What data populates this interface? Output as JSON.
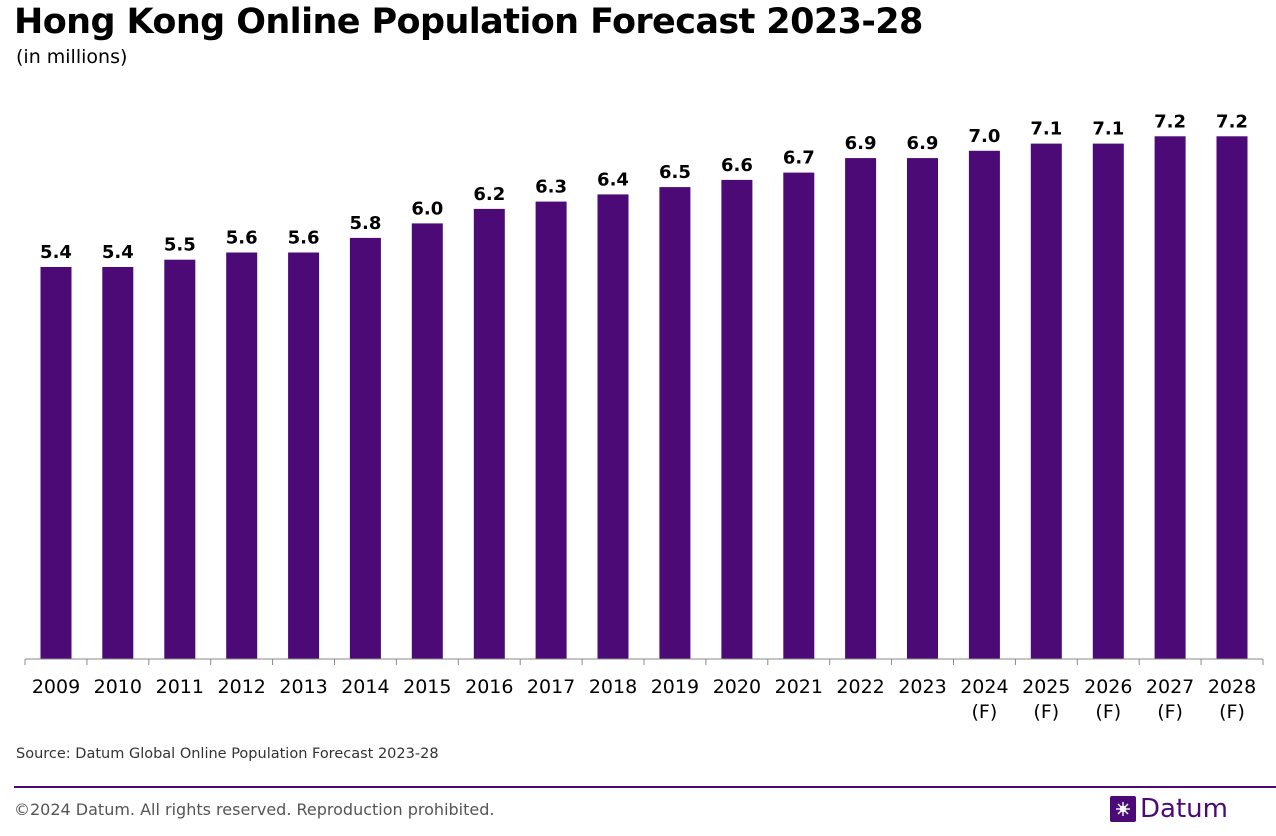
{
  "title": "Hong Kong Online Population Forecast 2023-28",
  "subtitle": "(in millions)",
  "source": "Source: Datum Global Online Population Forecast 2023-28",
  "copyright": "©2024 Datum. All rights reserved. Reproduction prohibited.",
  "brand": "Datum",
  "colors": {
    "bar": "#4b0a76",
    "accent": "#4b0a76",
    "axis": "#888888"
  },
  "icons": {
    "brand": "datum-logo-icon"
  },
  "chart_data": {
    "type": "bar",
    "categories": [
      "2009",
      "2010",
      "2011",
      "2012",
      "2013",
      "2014",
      "2015",
      "2016",
      "2017",
      "2018",
      "2019",
      "2020",
      "2021",
      "2022",
      "2023",
      "2024\n(F)",
      "2025\n(F)",
      "2026\n(F)",
      "2027\n(F)",
      "2028\n(F)"
    ],
    "values": [
      5.4,
      5.4,
      5.5,
      5.6,
      5.6,
      5.8,
      6.0,
      6.2,
      6.3,
      6.4,
      6.5,
      6.6,
      6.7,
      6.9,
      6.9,
      7.0,
      7.1,
      7.1,
      7.2,
      7.2
    ],
    "title": "Hong Kong Online Population Forecast 2023-28",
    "ylabel": "",
    "xlabel": "",
    "ylim": [
      0,
      7.7
    ],
    "grid": false,
    "legend": "none"
  }
}
